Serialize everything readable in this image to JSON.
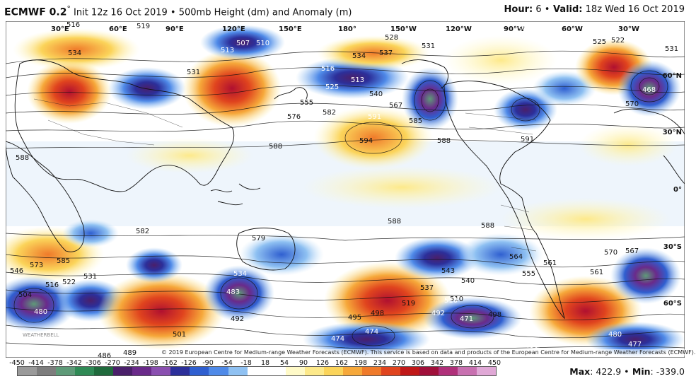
{
  "header": {
    "model": "ECMWF 0.2",
    "degree": "°",
    "init_text": " Init 12z 16 Oct 2019 • 500mb Height (dm) and Anomaly (m)",
    "hour_label": "Hour:",
    "hour_value": " 6 •",
    "valid_label": " Valid:",
    "valid_value": " 18z Wed 16 Oct 2019"
  },
  "map": {
    "lon_labels": [
      "30°E",
      "60°E",
      "90°E",
      "120°E",
      "150°E",
      "180°",
      "150°W",
      "120°W",
      "90°W",
      "60°W",
      "30°W"
    ],
    "lat_labels": [
      "60°N",
      "30°N",
      "0°",
      "30°S",
      "60°S"
    ],
    "height_labels_dark": [
      "519",
      "516",
      "534",
      "531",
      "528",
      "534",
      "537",
      "531",
      "525",
      "522",
      "531",
      "570",
      "576",
      "582",
      "555",
      "540",
      "567",
      "585",
      "594",
      "588",
      "588",
      "591",
      "588",
      "588",
      "588",
      "579",
      "582",
      "585",
      "573",
      "561",
      "570",
      "567",
      "555",
      "564",
      "561",
      "540",
      "543",
      "537",
      "519",
      "501",
      "492",
      "489",
      "486",
      "495",
      "498",
      "546",
      "531",
      "522",
      "516",
      "510",
      "504",
      "498"
    ],
    "height_labels_light": [
      "507",
      "510",
      "513",
      "516",
      "525",
      "513",
      "591",
      "504",
      "507",
      "510",
      "534",
      "483",
      "480",
      "474",
      "474",
      "480",
      "477",
      "510",
      "492",
      "471",
      "486",
      "468"
    ],
    "copyright": "© 2019 European Centre for Medium-range Weather Forecasts (ECMWF). This service is based on data and products of the European Centre for Medium-range Weather Forecasts (ECMWF).",
    "watermark": "WEATHERBELL"
  },
  "colorbar": {
    "labels": [
      "-450",
      "-414",
      "-378",
      "-342",
      "-306",
      "-270",
      "-234",
      "-198",
      "-162",
      "-126",
      "-90",
      "-54",
      "-18",
      "18",
      "54",
      "90",
      "126",
      "162",
      "198",
      "234",
      "270",
      "306",
      "342",
      "378",
      "414",
      "450"
    ],
    "colors": [
      "#9a9a9a",
      "#7d7d7d",
      "#5e9a78",
      "#2f8a55",
      "#1f6a3c",
      "#4a1f6a",
      "#6a2a8a",
      "#8a4fb0",
      "#2c2f9a",
      "#2f5fd0",
      "#4f8ae8",
      "#8fc1f2",
      "#ffffff",
      "#ffffff",
      "#fffac8",
      "#fde98a",
      "#fbd45a",
      "#f6a83a",
      "#ef7a2a",
      "#e0441e",
      "#c01818",
      "#a0103a",
      "#b0307a",
      "#c870b0",
      "#e0a8d6"
    ]
  },
  "stats": {
    "max_label": "Max",
    "max_value": ": 422.9 •",
    "min_label": " Min",
    "min_value": ": -339.0"
  }
}
